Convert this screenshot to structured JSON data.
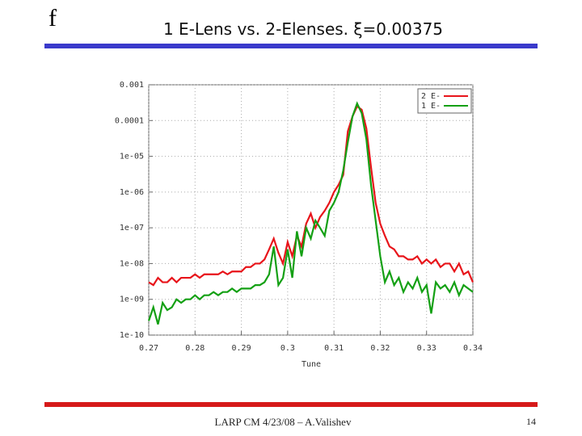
{
  "slide": {
    "logo": "f",
    "footer": "LARP CM 4/23/08 – A.Valishev",
    "page": "14"
  },
  "chart_data": {
    "type": "line",
    "title": "1 E-Lens vs. 2-Elenses. ξ=0.00375",
    "x_label": "Tune",
    "ylog": true,
    "grid": true,
    "legend": "top-right",
    "xlim": [
      0.27,
      0.34
    ],
    "xticks": [
      0.27,
      0.28,
      0.29,
      0.3,
      0.31,
      0.32,
      0.33,
      0.34
    ],
    "ylim": [
      1e-10,
      0.001
    ],
    "yticks": [
      0.001,
      0.0001,
      {
        "value": 1e-05,
        "label": "1e-05"
      },
      {
        "value": 1e-06,
        "label": "1e-06"
      },
      {
        "value": 1e-07,
        "label": "1e-07"
      },
      {
        "value": 1e-08,
        "label": "1e-08"
      },
      {
        "value": 1e-09,
        "label": "1e-09"
      },
      {
        "value": 1e-10,
        "label": "1e-10"
      }
    ],
    "x": [
      0.27,
      0.271,
      0.272,
      0.273,
      0.274,
      0.275,
      0.276,
      0.277,
      0.278,
      0.279,
      0.28,
      0.281,
      0.282,
      0.283,
      0.284,
      0.285,
      0.286,
      0.287,
      0.288,
      0.289,
      0.29,
      0.291,
      0.292,
      0.293,
      0.294,
      0.295,
      0.296,
      0.297,
      0.298,
      0.299,
      0.3,
      0.301,
      0.302,
      0.303,
      0.304,
      0.305,
      0.306,
      0.307,
      0.308,
      0.309,
      0.31,
      0.311,
      0.312,
      0.313,
      0.314,
      0.315,
      0.316,
      0.317,
      0.318,
      0.319,
      0.32,
      0.321,
      0.322,
      0.323,
      0.324,
      0.325,
      0.326,
      0.327,
      0.328,
      0.329,
      0.33,
      0.331,
      0.332,
      0.333,
      0.334,
      0.335,
      0.336,
      0.337,
      0.338,
      0.339,
      0.34
    ],
    "series": [
      {
        "name": "2 E-",
        "color": "#e8141a",
        "values": [
          3e-09,
          2.5e-09,
          4e-09,
          3e-09,
          3e-09,
          4e-09,
          3e-09,
          4e-09,
          4e-09,
          4e-09,
          5e-09,
          4e-09,
          5e-09,
          5e-09,
          5e-09,
          5e-09,
          6e-09,
          5e-09,
          6e-09,
          6e-09,
          6e-09,
          8e-09,
          8e-09,
          1e-08,
          1e-08,
          1.3e-08,
          2.5e-08,
          5e-08,
          2e-08,
          1e-08,
          4e-08,
          1.6e-08,
          6e-08,
          3e-08,
          1.3e-07,
          2.5e-07,
          1e-07,
          2e-07,
          3e-07,
          5e-07,
          1e-06,
          1.6e-06,
          3e-06,
          5e-05,
          0.00013,
          0.00025,
          0.0002,
          6e-05,
          5e-06,
          5e-07,
          1.3e-07,
          6e-08,
          3e-08,
          2.5e-08,
          1.6e-08,
          1.6e-08,
          1.3e-08,
          1.3e-08,
          1.6e-08,
          1e-08,
          1.3e-08,
          1e-08,
          1.3e-08,
          8e-09,
          1e-08,
          1e-08,
          6e-09,
          1e-08,
          5e-09,
          6e-09,
          3e-09
        ]
      },
      {
        "name": "1 E-",
        "color": "#14a014",
        "values": [
          2.5e-10,
          6e-10,
          2e-10,
          8e-10,
          5e-10,
          6e-10,
          1e-09,
          8e-10,
          1e-09,
          1e-09,
          1.3e-09,
          1e-09,
          1.3e-09,
          1.3e-09,
          1.6e-09,
          1.3e-09,
          1.6e-09,
          1.6e-09,
          2e-09,
          1.6e-09,
          2e-09,
          2e-09,
          2e-09,
          2.5e-09,
          2.5e-09,
          3e-09,
          5e-09,
          3e-08,
          2.5e-09,
          4e-09,
          2.5e-08,
          4e-09,
          8e-08,
          1.6e-08,
          1e-07,
          5e-08,
          1.6e-07,
          1e-07,
          6e-08,
          3e-07,
          5e-07,
          1e-06,
          4e-06,
          2.5e-05,
          0.00013,
          0.0003,
          0.00016,
          3e-05,
          1.6e-06,
          1.6e-07,
          1.6e-08,
          3e-09,
          6e-09,
          2.5e-09,
          4e-09,
          1.6e-09,
          3e-09,
          2e-09,
          4e-09,
          1.6e-09,
          2.5e-09,
          4e-10,
          3e-09,
          2e-09,
          2.5e-09,
          1.6e-09,
          3e-09,
          1.3e-09,
          2.5e-09,
          2e-09,
          1.6e-09
        ]
      }
    ]
  }
}
